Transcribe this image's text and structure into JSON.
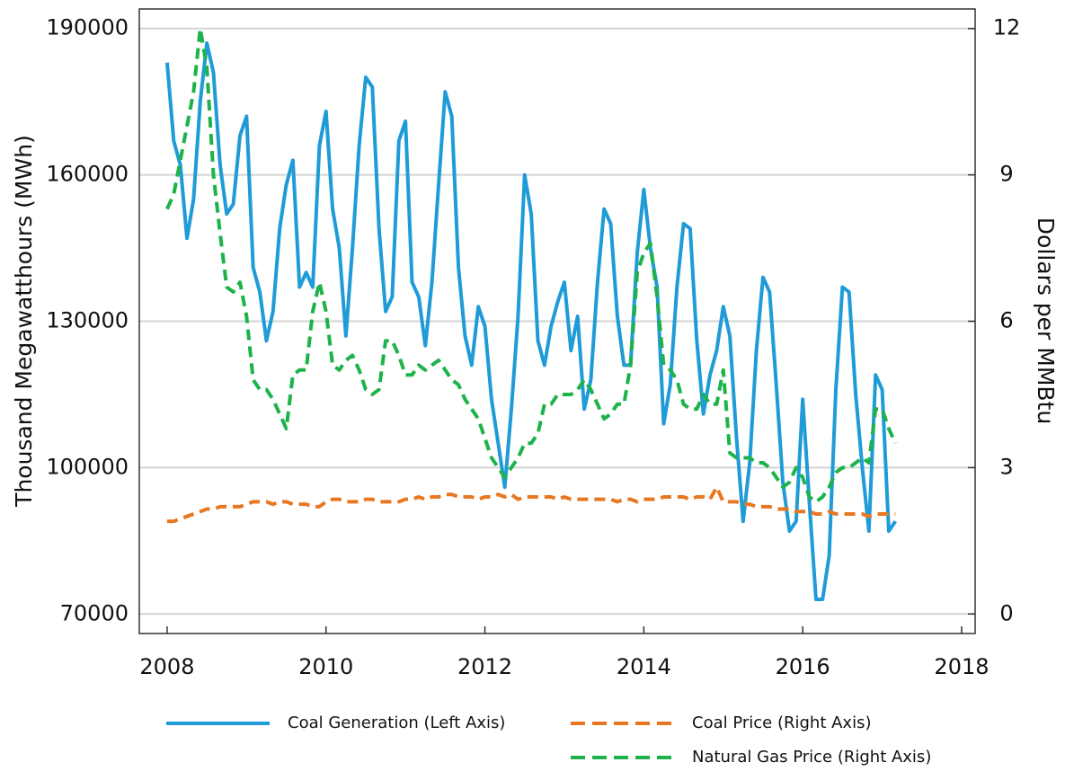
{
  "chart_data": {
    "type": "line",
    "y_label": "Thousand Megawatthours (MWh)",
    "y2_label": "Dollars per MMBtu",
    "x": [
      2008.0,
      2008.083,
      2008.167,
      2008.25,
      2008.333,
      2008.417,
      2008.5,
      2008.583,
      2008.667,
      2008.75,
      2008.833,
      2008.917,
      2009.0,
      2009.083,
      2009.167,
      2009.25,
      2009.333,
      2009.417,
      2009.5,
      2009.583,
      2009.667,
      2009.75,
      2009.833,
      2009.917,
      2010.0,
      2010.083,
      2010.167,
      2010.25,
      2010.333,
      2010.417,
      2010.5,
      2010.583,
      2010.667,
      2010.75,
      2010.833,
      2010.917,
      2011.0,
      2011.083,
      2011.167,
      2011.25,
      2011.333,
      2011.417,
      2011.5,
      2011.583,
      2011.667,
      2011.75,
      2011.833,
      2011.917,
      2012.0,
      2012.083,
      2012.167,
      2012.25,
      2012.333,
      2012.417,
      2012.5,
      2012.583,
      2012.667,
      2012.75,
      2012.833,
      2012.917,
      2013.0,
      2013.083,
      2013.167,
      2013.25,
      2013.333,
      2013.417,
      2013.5,
      2013.583,
      2013.667,
      2013.75,
      2013.833,
      2013.917,
      2014.0,
      2014.083,
      2014.167,
      2014.25,
      2014.333,
      2014.417,
      2014.5,
      2014.583,
      2014.667,
      2014.75,
      2014.833,
      2014.917,
      2015.0,
      2015.083,
      2015.167,
      2015.25,
      2015.333,
      2015.417,
      2015.5,
      2015.583,
      2015.667,
      2015.75,
      2015.833,
      2015.917,
      2016.0,
      2016.083,
      2016.167,
      2016.25,
      2016.333,
      2016.417,
      2016.5,
      2016.583,
      2016.667,
      2016.75,
      2016.833,
      2016.917,
      2017.0,
      2017.083,
      2017.167
    ],
    "series": [
      {
        "name": "Coal Generation (Left Axis)",
        "color": "#1f9bd7",
        "dash": false,
        "values": [
          183000,
          167000,
          162000,
          147000,
          155000,
          175000,
          187000,
          181000,
          162000,
          152000,
          154000,
          168000,
          172000,
          141000,
          136000,
          126000,
          132000,
          149000,
          158000,
          163000,
          137000,
          140000,
          137000,
          166000,
          173000,
          153000,
          145000,
          127000,
          145000,
          166000,
          180000,
          178000,
          149000,
          132000,
          135000,
          167000,
          171000,
          138000,
          135000,
          125000,
          138000,
          158000,
          177000,
          172000,
          141000,
          127000,
          121000,
          133000,
          129000,
          114000,
          105000,
          96000,
          112000,
          131000,
          160000,
          152000,
          126000,
          121000,
          129000,
          134000,
          138000,
          124000,
          131000,
          112000,
          118000,
          138000,
          153000,
          150000,
          131000,
          121000,
          121000,
          144000,
          157000,
          145000,
          137000,
          109000,
          117000,
          137000,
          150000,
          149000,
          126000,
          111000,
          119000,
          124000,
          133000,
          127000,
          106000,
          89000,
          101000,
          124000,
          139000,
          136000,
          117000,
          97000,
          87000,
          89000,
          114000,
          93000,
          73000,
          73000,
          82000,
          116000,
          137000,
          136000,
          115000,
          100000,
          87000,
          119000,
          116000,
          87000,
          89000
        ]
      },
      {
        "name": "Coal Price (Right Axis)",
        "color": "#e87722",
        "dash": true,
        "axis": "y2",
        "values": [
          1.9,
          1.9,
          1.95,
          2.0,
          2.05,
          2.1,
          2.15,
          2.15,
          2.2,
          2.2,
          2.2,
          2.2,
          2.25,
          2.3,
          2.3,
          2.3,
          2.25,
          2.3,
          2.3,
          2.25,
          2.25,
          2.25,
          2.2,
          2.2,
          2.3,
          2.35,
          2.35,
          2.3,
          2.3,
          2.3,
          2.35,
          2.35,
          2.3,
          2.3,
          2.3,
          2.3,
          2.35,
          2.35,
          2.4,
          2.35,
          2.4,
          2.4,
          2.45,
          2.45,
          2.4,
          2.4,
          2.4,
          2.35,
          2.4,
          2.4,
          2.45,
          2.4,
          2.45,
          2.35,
          2.4,
          2.4,
          2.4,
          2.4,
          2.4,
          2.35,
          2.4,
          2.35,
          2.35,
          2.35,
          2.35,
          2.35,
          2.35,
          2.35,
          2.3,
          2.35,
          2.35,
          2.3,
          2.35,
          2.35,
          2.35,
          2.4,
          2.4,
          2.4,
          2.4,
          2.35,
          2.4,
          2.4,
          2.35,
          2.6,
          2.3,
          2.3,
          2.3,
          2.25,
          2.25,
          2.2,
          2.2,
          2.2,
          2.15,
          2.15,
          2.15,
          2.1,
          2.1,
          2.1,
          2.05,
          2.05,
          2.1,
          2.05,
          2.05,
          2.05,
          2.05,
          2.05,
          2.0,
          2.05,
          2.05,
          2.05,
          2.05
        ]
      },
      {
        "name": "Natural Gas Price (Right Axis)",
        "color": "#1db34a",
        "dash": true,
        "axis": "y2",
        "values": [
          8.3,
          8.6,
          9.3,
          10.0,
          10.7,
          12.0,
          11.2,
          9.0,
          7.8,
          6.7,
          6.6,
          6.8,
          6.1,
          4.8,
          4.6,
          4.6,
          4.4,
          4.1,
          3.8,
          4.9,
          5.0,
          5.0,
          6.2,
          6.8,
          6.2,
          5.1,
          5.0,
          5.2,
          5.3,
          5.0,
          4.6,
          4.5,
          4.6,
          5.6,
          5.6,
          5.3,
          4.9,
          4.9,
          5.1,
          5.0,
          5.1,
          5.2,
          5.0,
          4.8,
          4.7,
          4.4,
          4.2,
          4.0,
          3.6,
          3.2,
          3.0,
          2.8,
          3.0,
          3.2,
          3.5,
          3.5,
          3.7,
          4.3,
          4.3,
          4.5,
          4.5,
          4.5,
          4.6,
          4.8,
          4.6,
          4.3,
          4.0,
          4.1,
          4.3,
          4.3,
          5.1,
          7.0,
          7.4,
          7.6,
          6.5,
          5.1,
          5.0,
          4.8,
          4.3,
          4.2,
          4.2,
          4.5,
          4.3,
          4.3,
          5.0,
          3.3,
          3.2,
          3.2,
          3.2,
          3.1,
          3.1,
          3.0,
          2.8,
          2.6,
          2.7,
          3.0,
          2.8,
          2.4,
          2.3,
          2.4,
          2.6,
          2.9,
          3.0,
          3.0,
          3.1,
          3.2,
          3.1,
          4.2,
          4.2,
          3.8,
          3.5
        ]
      }
    ],
    "xlim": [
      2007.65,
      2018.17
    ],
    "xticks": [
      2008,
      2010,
      2012,
      2014,
      2016,
      2018
    ],
    "ylim": [
      66000,
      194000
    ],
    "yticks": [
      70000,
      100000,
      130000,
      160000,
      190000
    ],
    "y2lim": [
      -0.4,
      12.4
    ],
    "y2ticks": [
      0,
      3,
      6,
      9,
      12
    ],
    "grid": true
  }
}
